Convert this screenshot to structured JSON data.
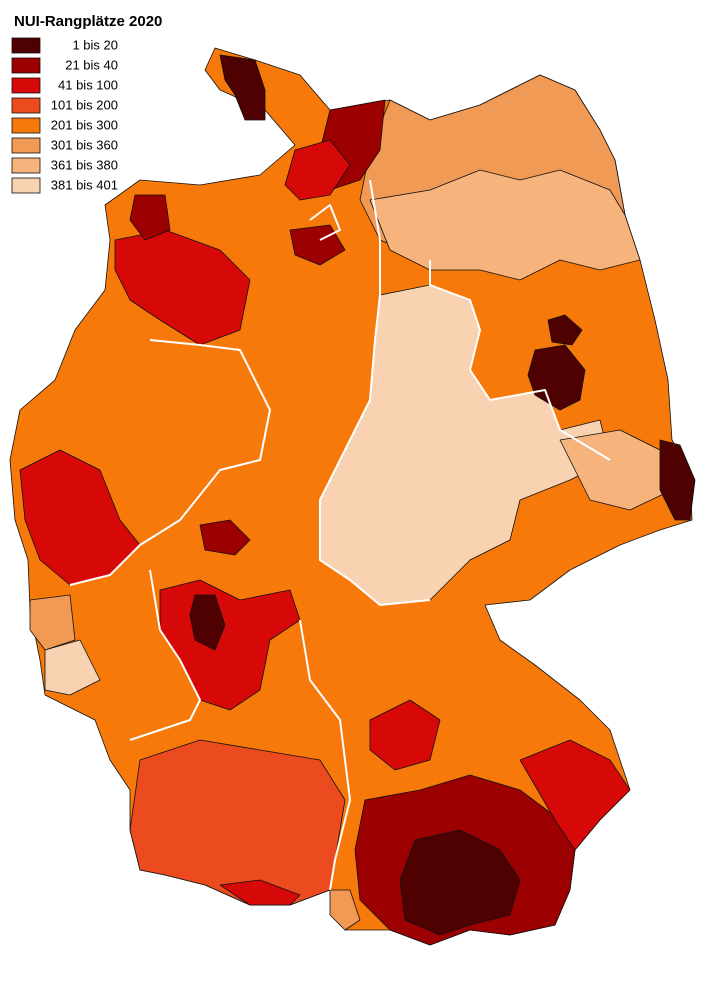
{
  "title": "NUI-Rangplätze 2020",
  "legend": [
    {
      "label": "1 bis 20",
      "color": "#4f0000"
    },
    {
      "label": "21 bis 40",
      "color": "#9c0000"
    },
    {
      "label": "41 bis 100",
      "color": "#d70808"
    },
    {
      "label": "101 bis 200",
      "color": "#ec4b1f"
    },
    {
      "label": "201 bis 300",
      "color": "#f7790a"
    },
    {
      "label": "301 bis 360",
      "color": "#f19a55"
    },
    {
      "label": "361 bis 380",
      "color": "#f6b37c"
    },
    {
      "label": "381 bis 401",
      "color": "#f9d3b1"
    }
  ]
}
